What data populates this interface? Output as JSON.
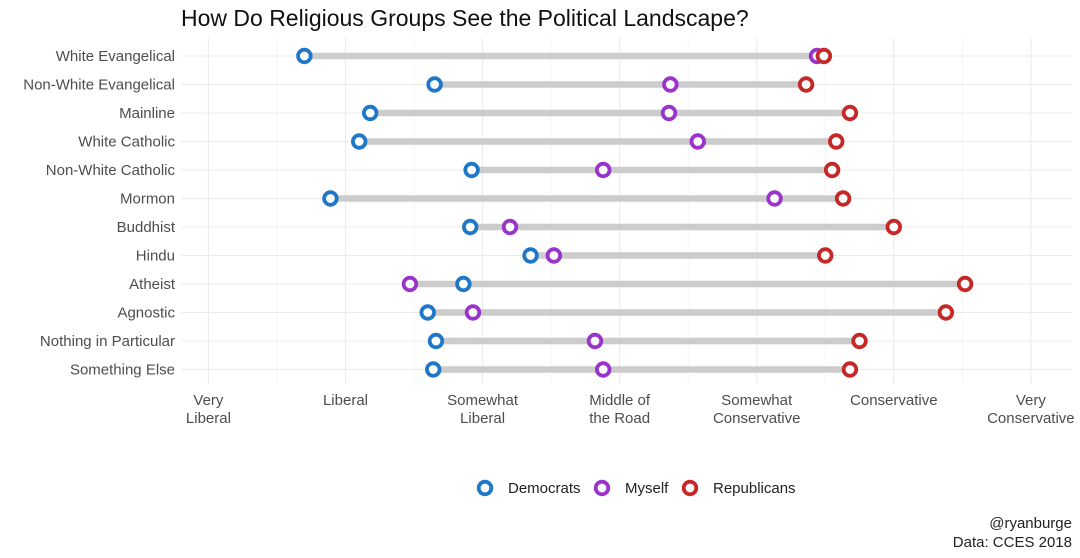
{
  "chart_data": {
    "type": "dumbbell",
    "title": "How Do Religious Groups See the Political Landscape?",
    "xlabel": "",
    "ylabel": "",
    "xlim": [
      0.8,
      7.3
    ],
    "x_ticks": [
      {
        "value": 1,
        "label": [
          "Very",
          "Liberal"
        ]
      },
      {
        "value": 2,
        "label": [
          "Liberal"
        ]
      },
      {
        "value": 3,
        "label": [
          "Somewhat",
          "Liberal"
        ]
      },
      {
        "value": 4,
        "label": [
          "Middle of",
          "the Road"
        ]
      },
      {
        "value": 5,
        "label": [
          "Somewhat",
          "Conservative"
        ]
      },
      {
        "value": 6,
        "label": [
          "Conservative"
        ]
      },
      {
        "value": 7,
        "label": [
          "Very",
          "Conservative"
        ]
      }
    ],
    "grid": true,
    "legend_position": "bottom",
    "categories": [
      "White Evangelical",
      "Non-White Evangelical",
      "Mainline",
      "White Catholic",
      "Non-White Catholic",
      "Mormon",
      "Buddhist",
      "Hindu",
      "Atheist",
      "Agnostic",
      "Nothing in Particular",
      "Something Else"
    ],
    "series": [
      {
        "name": "Democrats",
        "color": "#1f77c9",
        "values": [
          1.7,
          2.65,
          2.18,
          2.1,
          2.92,
          1.89,
          2.91,
          3.35,
          2.86,
          2.6,
          2.66,
          2.64
        ]
      },
      {
        "name": "Myself",
        "color": "#9933cc",
        "values": [
          5.44,
          4.37,
          4.36,
          4.57,
          3.88,
          5.13,
          3.2,
          3.52,
          2.47,
          2.93,
          3.82,
          3.88
        ]
      },
      {
        "name": "Republicans",
        "color": "#c62828",
        "values": [
          5.49,
          5.36,
          5.68,
          5.58,
          5.55,
          5.63,
          6.0,
          5.5,
          6.52,
          6.38,
          5.75,
          5.68
        ]
      }
    ]
  },
  "caption": {
    "line1": "@ryanburge",
    "line2": "Data: CCES 2018"
  }
}
